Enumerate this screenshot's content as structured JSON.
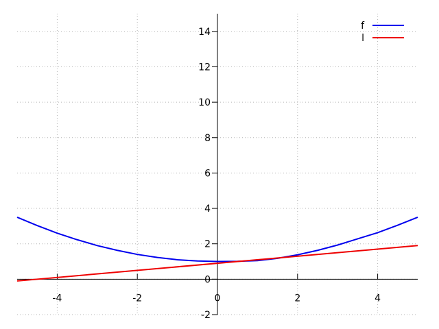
{
  "chart_data": {
    "type": "line",
    "title": "",
    "xlabel": "",
    "ylabel": "",
    "xlim": [
      -5,
      5
    ],
    "ylim": [
      -2,
      15
    ],
    "grid": true,
    "legend_position": "top-right",
    "x_ticks": [
      {
        "value": -4,
        "label": "-4"
      },
      {
        "value": -2,
        "label": "-2"
      },
      {
        "value": 0,
        "label": "0"
      },
      {
        "value": 2,
        "label": "2"
      },
      {
        "value": 4,
        "label": "4"
      }
    ],
    "y_ticks": [
      {
        "value": -2,
        "label": "-2"
      },
      {
        "value": 0,
        "label": "0"
      },
      {
        "value": 2,
        "label": "2"
      },
      {
        "value": 4,
        "label": "4"
      },
      {
        "value": 6,
        "label": "6"
      },
      {
        "value": 8,
        "label": "8"
      },
      {
        "value": 10,
        "label": "10"
      },
      {
        "value": 12,
        "label": "12"
      },
      {
        "value": 14,
        "label": "14"
      }
    ],
    "series": [
      {
        "name": "f",
        "color": "#0000ee",
        "x": [
          -5,
          -4.5,
          -4,
          -3.5,
          -3,
          -2.5,
          -2,
          -1.5,
          -1,
          -0.5,
          0,
          0.5,
          1,
          1.5,
          2,
          2.5,
          3,
          3.5,
          4,
          4.5,
          5
        ],
        "y": [
          3.5,
          3.03,
          2.6,
          2.23,
          1.9,
          1.63,
          1.4,
          1.23,
          1.1,
          1.03,
          1.0,
          1.01,
          1.05,
          1.18,
          1.38,
          1.63,
          1.93,
          2.28,
          2.63,
          3.05,
          3.5
        ]
      },
      {
        "name": "l",
        "color": "#ee0000",
        "x": [
          -5,
          5
        ],
        "y": [
          -0.1,
          1.9
        ]
      }
    ]
  }
}
